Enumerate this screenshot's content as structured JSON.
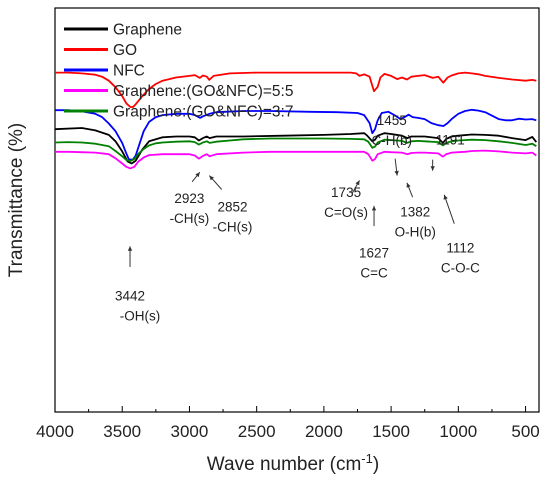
{
  "chart_data": {
    "type": "line",
    "xlabel": "Wave number (cm",
    "xlabel_sup": "-1",
    "xlabel_tail": ")",
    "ylabel": "Transmittance (%)",
    "xlim": [
      4000,
      400
    ],
    "x_ticks": [
      "4000",
      "3500",
      "3000",
      "2500",
      "2000",
      "1500",
      "1000",
      "500"
    ],
    "grid": false,
    "legend_position": "top-left",
    "series": [
      {
        "name": "Graphene",
        "color": "#000000",
        "points": [
          [
            4000,
            0.3
          ],
          [
            3800,
            0.297
          ],
          [
            3700,
            0.303
          ],
          [
            3600,
            0.314
          ],
          [
            3550,
            0.33
          ],
          [
            3500,
            0.355
          ],
          [
            3460,
            0.38
          ],
          [
            3430,
            0.385
          ],
          [
            3400,
            0.378
          ],
          [
            3350,
            0.35
          ],
          [
            3300,
            0.33
          ],
          [
            3200,
            0.32
          ],
          [
            3100,
            0.318
          ],
          [
            3000,
            0.318
          ],
          [
            2960,
            0.32
          ],
          [
            2930,
            0.328
          ],
          [
            2900,
            0.322
          ],
          [
            2870,
            0.318
          ],
          [
            2850,
            0.322
          ],
          [
            2800,
            0.318
          ],
          [
            2600,
            0.318
          ],
          [
            2300,
            0.316
          ],
          [
            2000,
            0.314
          ],
          [
            1800,
            0.312
          ],
          [
            1700,
            0.31
          ],
          [
            1680,
            0.315
          ],
          [
            1640,
            0.33
          ],
          [
            1620,
            0.326
          ],
          [
            1600,
            0.316
          ],
          [
            1550,
            0.31
          ],
          [
            1500,
            0.312
          ],
          [
            1420,
            0.316
          ],
          [
            1380,
            0.322
          ],
          [
            1350,
            0.318
          ],
          [
            1250,
            0.318
          ],
          [
            1150,
            0.322
          ],
          [
            1115,
            0.334
          ],
          [
            1090,
            0.324
          ],
          [
            1050,
            0.318
          ],
          [
            1000,
            0.316
          ],
          [
            900,
            0.313
          ],
          [
            800,
            0.314
          ],
          [
            700,
            0.316
          ],
          [
            600,
            0.322
          ],
          [
            500,
            0.327
          ],
          [
            450,
            0.319
          ],
          [
            420,
            0.332
          ]
        ]
      },
      {
        "name": "GO",
        "color": "#ff0000",
        "points": [
          [
            4000,
            0.16
          ],
          [
            3900,
            0.16
          ],
          [
            3800,
            0.162
          ],
          [
            3700,
            0.165
          ],
          [
            3650,
            0.17
          ],
          [
            3600,
            0.18
          ],
          [
            3550,
            0.196
          ],
          [
            3500,
            0.218
          ],
          [
            3470,
            0.236
          ],
          [
            3440,
            0.245
          ],
          [
            3420,
            0.245
          ],
          [
            3400,
            0.238
          ],
          [
            3350,
            0.218
          ],
          [
            3300,
            0.2
          ],
          [
            3250,
            0.188
          ],
          [
            3200,
            0.18
          ],
          [
            3100,
            0.172
          ],
          [
            3000,
            0.168
          ],
          [
            2960,
            0.166
          ],
          [
            2923,
            0.173
          ],
          [
            2900,
            0.167
          ],
          [
            2870,
            0.17
          ],
          [
            2852,
            0.178
          ],
          [
            2820,
            0.168
          ],
          [
            2700,
            0.162
          ],
          [
            2500,
            0.16
          ],
          [
            2300,
            0.16
          ],
          [
            2000,
            0.16
          ],
          [
            1800,
            0.16
          ],
          [
            1760,
            0.162
          ],
          [
            1735,
            0.168
          ],
          [
            1700,
            0.164
          ],
          [
            1660,
            0.17
          ],
          [
            1627,
            0.206
          ],
          [
            1600,
            0.195
          ],
          [
            1580,
            0.172
          ],
          [
            1550,
            0.163
          ],
          [
            1500,
            0.168
          ],
          [
            1455,
            0.176
          ],
          [
            1420,
            0.172
          ],
          [
            1382,
            0.177
          ],
          [
            1350,
            0.17
          ],
          [
            1300,
            0.168
          ],
          [
            1250,
            0.166
          ],
          [
            1191,
            0.173
          ],
          [
            1150,
            0.17
          ],
          [
            1112,
            0.185
          ],
          [
            1080,
            0.172
          ],
          [
            1050,
            0.167
          ],
          [
            1000,
            0.162
          ],
          [
            950,
            0.16
          ],
          [
            900,
            0.162
          ],
          [
            850,
            0.164
          ],
          [
            800,
            0.168
          ],
          [
            700,
            0.173
          ],
          [
            600,
            0.177
          ],
          [
            500,
            0.18
          ],
          [
            450,
            0.178
          ],
          [
            420,
            0.18
          ]
        ]
      },
      {
        "name": "NFC",
        "color": "#0000ff",
        "points": [
          [
            4000,
            0.253
          ],
          [
            3900,
            0.253
          ],
          [
            3800,
            0.256
          ],
          [
            3700,
            0.262
          ],
          [
            3650,
            0.27
          ],
          [
            3600,
            0.286
          ],
          [
            3550,
            0.305
          ],
          [
            3500,
            0.334
          ],
          [
            3470,
            0.36
          ],
          [
            3450,
            0.375
          ],
          [
            3420,
            0.375
          ],
          [
            3400,
            0.365
          ],
          [
            3370,
            0.335
          ],
          [
            3340,
            0.305
          ],
          [
            3300,
            0.282
          ],
          [
            3250,
            0.27
          ],
          [
            3200,
            0.265
          ],
          [
            3100,
            0.262
          ],
          [
            3000,
            0.262
          ],
          [
            2960,
            0.265
          ],
          [
            2920,
            0.272
          ],
          [
            2900,
            0.268
          ],
          [
            2850,
            0.262
          ],
          [
            2800,
            0.258
          ],
          [
            2600,
            0.255
          ],
          [
            2400,
            0.255
          ],
          [
            2100,
            0.257
          ],
          [
            1900,
            0.258
          ],
          [
            1750,
            0.26
          ],
          [
            1700,
            0.265
          ],
          [
            1660,
            0.285
          ],
          [
            1640,
            0.31
          ],
          [
            1620,
            0.3
          ],
          [
            1600,
            0.278
          ],
          [
            1570,
            0.26
          ],
          [
            1520,
            0.257
          ],
          [
            1470,
            0.266
          ],
          [
            1430,
            0.275
          ],
          [
            1400,
            0.27
          ],
          [
            1370,
            0.264
          ],
          [
            1340,
            0.27
          ],
          [
            1300,
            0.272
          ],
          [
            1250,
            0.275
          ],
          [
            1200,
            0.285
          ],
          [
            1150,
            0.29
          ],
          [
            1110,
            0.292
          ],
          [
            1080,
            0.285
          ],
          [
            1050,
            0.275
          ],
          [
            1000,
            0.262
          ],
          [
            950,
            0.255
          ],
          [
            900,
            0.252
          ],
          [
            850,
            0.254
          ],
          [
            800,
            0.258
          ],
          [
            700,
            0.275
          ],
          [
            650,
            0.278
          ],
          [
            600,
            0.278
          ],
          [
            550,
            0.274
          ],
          [
            500,
            0.276
          ],
          [
            450,
            0.275
          ],
          [
            420,
            0.278
          ]
        ]
      },
      {
        "name": "Graphene:(GO&NFC)=5:5",
        "color": "#ff00ff",
        "points": [
          [
            4000,
            0.356
          ],
          [
            3900,
            0.356
          ],
          [
            3800,
            0.357
          ],
          [
            3700,
            0.358
          ],
          [
            3600,
            0.362
          ],
          [
            3550,
            0.372
          ],
          [
            3500,
            0.385
          ],
          [
            3470,
            0.393
          ],
          [
            3440,
            0.397
          ],
          [
            3410,
            0.393
          ],
          [
            3380,
            0.38
          ],
          [
            3340,
            0.37
          ],
          [
            3300,
            0.364
          ],
          [
            3200,
            0.362
          ],
          [
            3100,
            0.362
          ],
          [
            3000,
            0.362
          ],
          [
            2960,
            0.365
          ],
          [
            2930,
            0.373
          ],
          [
            2900,
            0.366
          ],
          [
            2870,
            0.362
          ],
          [
            2850,
            0.367
          ],
          [
            2800,
            0.362
          ],
          [
            2600,
            0.358
          ],
          [
            2400,
            0.356
          ],
          [
            2200,
            0.356
          ],
          [
            2000,
            0.356
          ],
          [
            1800,
            0.356
          ],
          [
            1700,
            0.356
          ],
          [
            1670,
            0.362
          ],
          [
            1640,
            0.378
          ],
          [
            1620,
            0.374
          ],
          [
            1600,
            0.362
          ],
          [
            1550,
            0.356
          ],
          [
            1500,
            0.357
          ],
          [
            1420,
            0.358
          ],
          [
            1380,
            0.362
          ],
          [
            1350,
            0.359
          ],
          [
            1300,
            0.358
          ],
          [
            1250,
            0.358
          ],
          [
            1150,
            0.36
          ],
          [
            1115,
            0.368
          ],
          [
            1090,
            0.362
          ],
          [
            1050,
            0.358
          ],
          [
            1000,
            0.357
          ],
          [
            950,
            0.356
          ],
          [
            900,
            0.354
          ],
          [
            800,
            0.353
          ],
          [
            700,
            0.355
          ],
          [
            600,
            0.358
          ],
          [
            500,
            0.36
          ],
          [
            450,
            0.358
          ],
          [
            420,
            0.365
          ]
        ]
      },
      {
        "name": "Graphene:(GO&NFC)=3:7",
        "color": "#008000",
        "points": [
          [
            4000,
            0.333
          ],
          [
            3900,
            0.332
          ],
          [
            3800,
            0.333
          ],
          [
            3700,
            0.336
          ],
          [
            3600,
            0.342
          ],
          [
            3550,
            0.354
          ],
          [
            3500,
            0.367
          ],
          [
            3470,
            0.376
          ],
          [
            3440,
            0.379
          ],
          [
            3410,
            0.374
          ],
          [
            3380,
            0.361
          ],
          [
            3340,
            0.349
          ],
          [
            3300,
            0.34
          ],
          [
            3250,
            0.335
          ],
          [
            3200,
            0.333
          ],
          [
            3100,
            0.331
          ],
          [
            3000,
            0.33
          ],
          [
            2960,
            0.332
          ],
          [
            2930,
            0.338
          ],
          [
            2900,
            0.333
          ],
          [
            2870,
            0.33
          ],
          [
            2850,
            0.334
          ],
          [
            2800,
            0.331
          ],
          [
            2700,
            0.328
          ],
          [
            2600,
            0.325
          ],
          [
            2400,
            0.323
          ],
          [
            2200,
            0.323
          ],
          [
            2000,
            0.323
          ],
          [
            1800,
            0.324
          ],
          [
            1700,
            0.325
          ],
          [
            1670,
            0.331
          ],
          [
            1640,
            0.346
          ],
          [
            1620,
            0.343
          ],
          [
            1600,
            0.333
          ],
          [
            1550,
            0.326
          ],
          [
            1500,
            0.327
          ],
          [
            1420,
            0.329
          ],
          [
            1380,
            0.334
          ],
          [
            1350,
            0.33
          ],
          [
            1300,
            0.329
          ],
          [
            1250,
            0.33
          ],
          [
            1150,
            0.332
          ],
          [
            1115,
            0.34
          ],
          [
            1090,
            0.334
          ],
          [
            1050,
            0.33
          ],
          [
            1000,
            0.328
          ],
          [
            950,
            0.327
          ],
          [
            900,
            0.326
          ],
          [
            800,
            0.327
          ],
          [
            700,
            0.33
          ],
          [
            600,
            0.334
          ],
          [
            500,
            0.339
          ],
          [
            450,
            0.336
          ],
          [
            420,
            0.342
          ]
        ]
      }
    ],
    "annotations": [
      {
        "label": "3442",
        "sub": "-OH(s)",
        "x": 3442,
        "y": 0.245,
        "dir": "down"
      },
      {
        "label": "2923",
        "sub": "-CH(s)",
        "x": 2923,
        "y": 0.176,
        "dir": "down"
      },
      {
        "label": "2852",
        "sub": "-CH(s)",
        "x": 2852,
        "y": 0.18,
        "dir": "down"
      },
      {
        "label": "1735",
        "sub": "C=O(s)",
        "x": 1735,
        "y": 0.17,
        "dir": "up"
      },
      {
        "label": "1627",
        "sub": "C=C",
        "x": 1627,
        "y": 0.209,
        "dir": "down"
      },
      {
        "label": "1455",
        "sub": "C-H(b)",
        "x": 1455,
        "y": 0.16,
        "dir": "up"
      },
      {
        "label": "1382",
        "sub": "O-H(b)",
        "x": 1382,
        "y": 0.18,
        "dir": "down"
      },
      {
        "label": "1191",
        "sub": "",
        "x": 1191,
        "y": 0.158,
        "dir": "up"
      },
      {
        "label": "1112",
        "sub": "C-O-C",
        "x": 1112,
        "y": 0.188,
        "dir": "down"
      }
    ]
  }
}
